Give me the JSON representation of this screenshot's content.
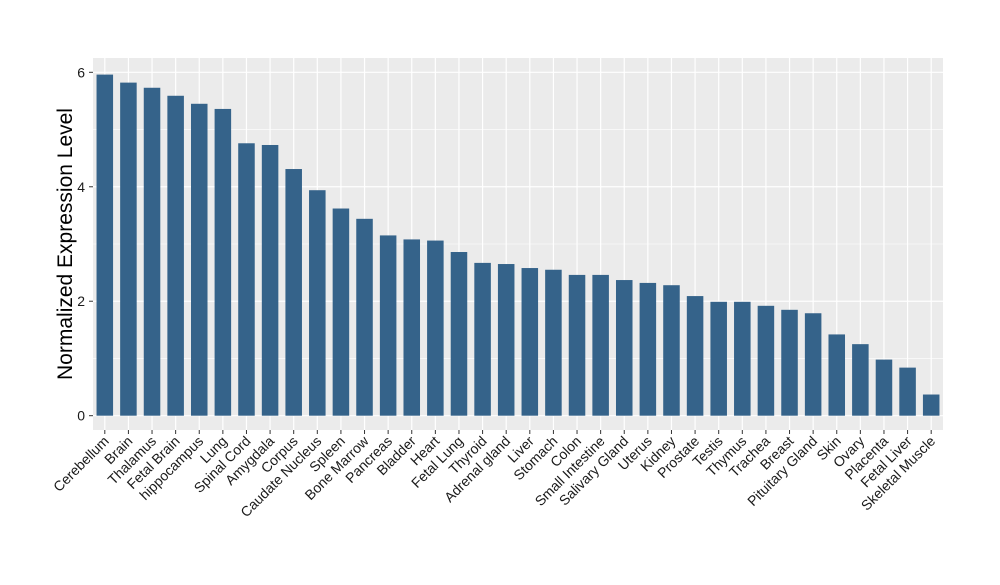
{
  "chart_data": {
    "type": "bar",
    "title": "",
    "xlabel": "",
    "ylabel": "Normalized Expression Level",
    "ylim": [
      -0.25,
      6.25
    ],
    "yticks": [
      0,
      2,
      4,
      6
    ],
    "grid": true,
    "bar_color": "#35638A",
    "panel_color": "#EBEBEB",
    "categories": [
      "Cerebellum",
      "Brain",
      "Thalamus",
      "Fetal Brain",
      "hippocampus",
      "Lung",
      "Spinal Cord",
      "Amygdala",
      "Corpus",
      "Caudate Nucleus",
      "Spleen",
      "Bone Marrow",
      "Pancreas",
      "Bladder",
      "Heart",
      "Fetal Lung",
      "Thyroid",
      "Adrenal gland",
      "Liver",
      "Stomach",
      "Colon",
      "Small Intestine",
      "Salivary Gland",
      "Uterus",
      "Kidney",
      "Prostate",
      "Testis",
      "Thymus",
      "Trachea",
      "Breast",
      "Pituitary Gland",
      "Skin",
      "Ovary",
      "Placenta",
      "Fetal Liver",
      "Skeletal Muscle"
    ],
    "values": [
      5.96,
      5.82,
      5.73,
      5.59,
      5.45,
      5.36,
      4.76,
      4.73,
      4.31,
      3.94,
      3.62,
      3.44,
      3.15,
      3.08,
      3.06,
      2.86,
      2.67,
      2.65,
      2.58,
      2.55,
      2.46,
      2.46,
      2.37,
      2.32,
      2.28,
      2.09,
      1.99,
      1.99,
      1.92,
      1.85,
      1.79,
      1.42,
      1.25,
      0.98,
      0.84,
      0.37
    ]
  }
}
